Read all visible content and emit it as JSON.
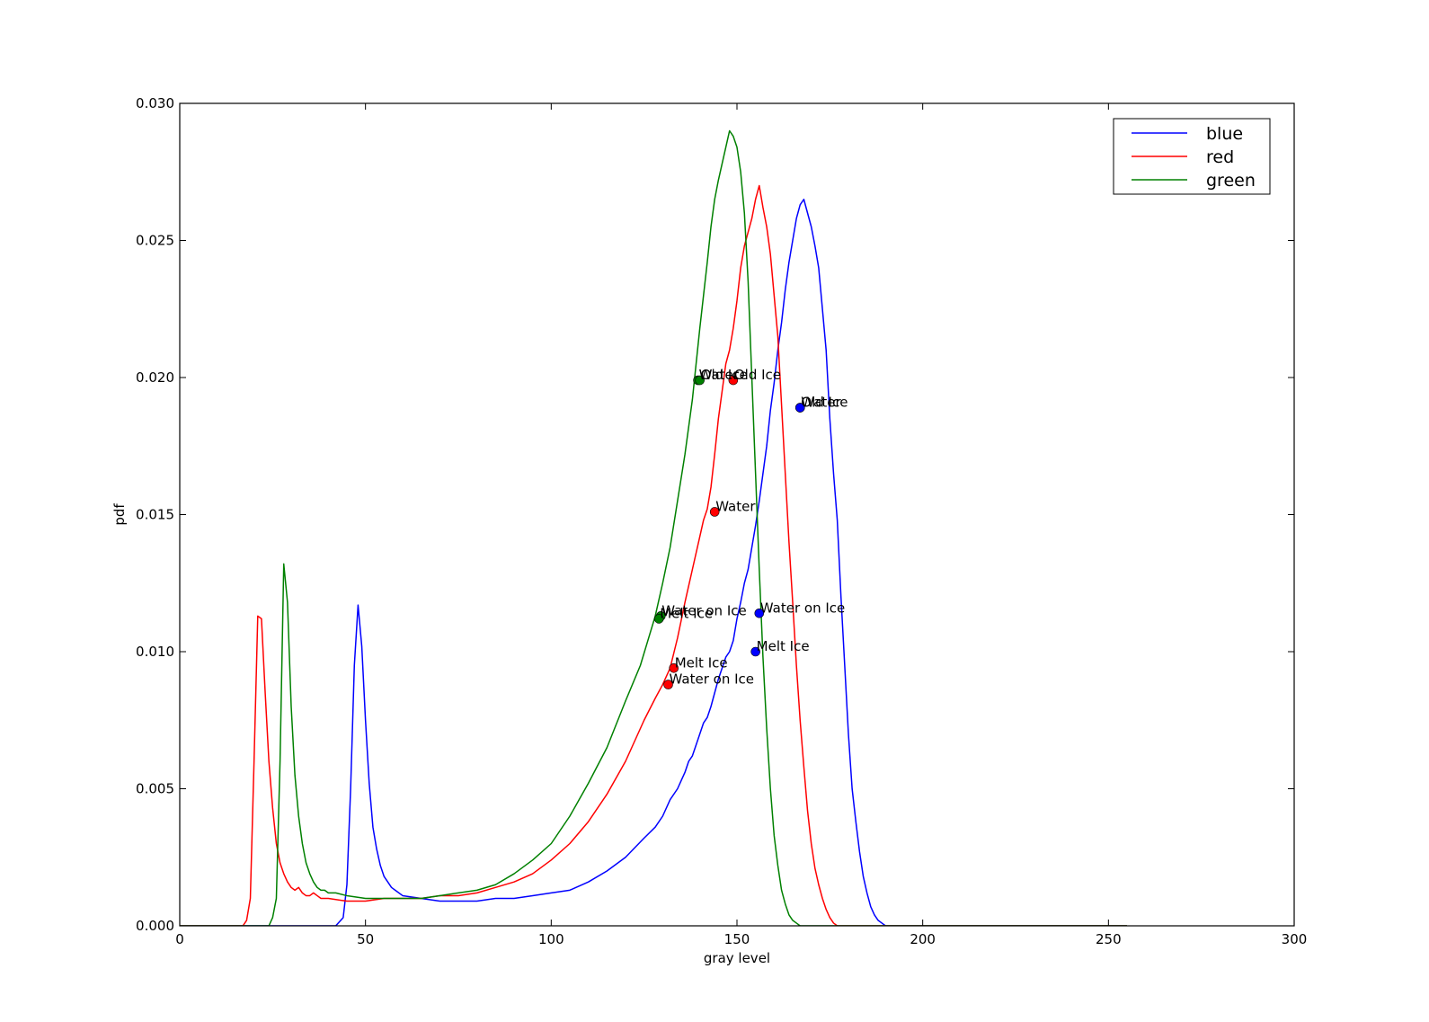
{
  "chart_data": {
    "type": "line",
    "title": "",
    "xlabel": "gray level",
    "ylabel": "pdf",
    "xlim": [
      0,
      300
    ],
    "ylim": [
      0,
      0.03
    ],
    "xticks": [
      0,
      50,
      100,
      150,
      200,
      250,
      300
    ],
    "xtick_labels": [
      "0",
      "50",
      "100",
      "150",
      "200",
      "250",
      "300"
    ],
    "yticks": [
      0,
      0.005,
      0.01,
      0.015,
      0.02,
      0.025,
      0.03
    ],
    "ytick_labels": [
      "0.000",
      "0.005",
      "0.010",
      "0.015",
      "0.020",
      "0.025",
      "0.030"
    ],
    "grid": false,
    "legend_position": "top-right",
    "series": [
      {
        "name": "blue",
        "color": "#0000ff",
        "x": [
          0,
          42,
          44,
          45,
          46,
          47,
          48,
          49,
          50,
          51,
          52,
          53,
          54,
          55,
          56,
          57,
          58,
          60,
          65,
          70,
          75,
          80,
          85,
          90,
          95,
          100,
          105,
          110,
          115,
          120,
          125,
          128,
          130,
          132,
          134,
          135,
          136,
          137,
          138,
          139,
          140,
          141,
          142,
          143,
          144,
          145,
          146,
          147,
          148,
          149,
          150,
          151,
          152,
          153,
          154,
          155,
          156,
          157,
          158,
          159,
          160,
          161,
          162,
          163,
          164,
          165,
          166,
          167,
          168,
          169,
          170,
          171,
          172,
          173,
          174,
          175,
          176,
          177,
          178,
          179,
          180,
          181,
          182,
          183,
          184,
          185,
          186,
          187,
          188,
          189,
          190,
          191,
          192,
          193,
          194,
          195,
          196,
          197,
          198,
          199,
          200,
          202,
          255
        ],
        "y": [
          0,
          0,
          0.0003,
          0.0015,
          0.005,
          0.0095,
          0.0117,
          0.0102,
          0.0075,
          0.0052,
          0.0036,
          0.0028,
          0.0022,
          0.0018,
          0.0016,
          0.0014,
          0.0013,
          0.0011,
          0.001,
          0.0009,
          0.0009,
          0.0009,
          0.001,
          0.001,
          0.0011,
          0.0012,
          0.0013,
          0.0016,
          0.002,
          0.0025,
          0.0032,
          0.0036,
          0.004,
          0.0046,
          0.005,
          0.0053,
          0.0056,
          0.006,
          0.0062,
          0.0066,
          0.007,
          0.0074,
          0.0076,
          0.008,
          0.0085,
          0.009,
          0.0094,
          0.0098,
          0.01,
          0.0104,
          0.0112,
          0.0118,
          0.0125,
          0.013,
          0.0138,
          0.0146,
          0.0155,
          0.0165,
          0.0175,
          0.0188,
          0.0198,
          0.021,
          0.022,
          0.0232,
          0.0242,
          0.025,
          0.0258,
          0.0263,
          0.0265,
          0.026,
          0.0255,
          0.0248,
          0.024,
          0.0225,
          0.021,
          0.0185,
          0.0165,
          0.0148,
          0.012,
          0.0095,
          0.007,
          0.005,
          0.0038,
          0.0027,
          0.0018,
          0.0012,
          0.0007,
          0.0004,
          0.0002,
          0.0001,
          0,
          0,
          0,
          0,
          0,
          0,
          0,
          0,
          0,
          0,
          0,
          0,
          0
        ]
      },
      {
        "name": "red",
        "color": "#ff0000",
        "x": [
          0,
          17,
          18,
          19,
          20,
          21,
          22,
          23,
          24,
          25,
          26,
          27,
          28,
          29,
          30,
          31,
          32,
          33,
          34,
          35,
          36,
          37,
          38,
          40,
          45,
          50,
          55,
          60,
          65,
          70,
          75,
          80,
          85,
          90,
          95,
          100,
          105,
          110,
          115,
          120,
          125,
          128,
          130,
          132,
          134,
          136,
          138,
          140,
          141,
          142,
          143,
          144,
          145,
          146,
          147,
          148,
          149,
          150,
          151,
          152,
          153,
          154,
          155,
          156,
          157,
          158,
          159,
          160,
          161,
          162,
          163,
          164,
          165,
          166,
          167,
          168,
          169,
          170,
          171,
          172,
          173,
          174,
          175,
          176,
          177,
          178,
          179,
          180,
          182,
          255
        ],
        "y": [
          0,
          0,
          0.0002,
          0.001,
          0.006,
          0.0113,
          0.0112,
          0.0085,
          0.006,
          0.0043,
          0.003,
          0.0023,
          0.0019,
          0.0016,
          0.0014,
          0.0013,
          0.0014,
          0.0012,
          0.0011,
          0.0011,
          0.0012,
          0.0011,
          0.001,
          0.001,
          0.0009,
          0.0009,
          0.001,
          0.001,
          0.001,
          0.0011,
          0.0011,
          0.0012,
          0.0014,
          0.0016,
          0.0019,
          0.0024,
          0.003,
          0.0038,
          0.0048,
          0.006,
          0.0075,
          0.0083,
          0.0088,
          0.0094,
          0.0105,
          0.0118,
          0.013,
          0.0142,
          0.0148,
          0.0152,
          0.016,
          0.0172,
          0.0185,
          0.0195,
          0.0205,
          0.021,
          0.0218,
          0.0228,
          0.024,
          0.0248,
          0.0253,
          0.0258,
          0.0265,
          0.027,
          0.0262,
          0.0255,
          0.0245,
          0.023,
          0.0215,
          0.019,
          0.0165,
          0.014,
          0.0118,
          0.0095,
          0.0075,
          0.0058,
          0.0042,
          0.003,
          0.0021,
          0.0015,
          0.001,
          0.0006,
          0.0003,
          0.0001,
          0,
          0,
          0,
          0,
          0,
          0
        ]
      },
      {
        "name": "green",
        "color": "#008000",
        "x": [
          0,
          24,
          25,
          26,
          27,
          28,
          29,
          30,
          31,
          32,
          33,
          34,
          35,
          36,
          37,
          38,
          39,
          40,
          42,
          45,
          50,
          55,
          60,
          65,
          70,
          75,
          80,
          85,
          90,
          95,
          100,
          105,
          110,
          115,
          120,
          124,
          126,
          128,
          130,
          132,
          134,
          136,
          138,
          139,
          140,
          141,
          142,
          143,
          144,
          145,
          146,
          147,
          148,
          149,
          150,
          151,
          152,
          153,
          154,
          155,
          156,
          157,
          158,
          159,
          160,
          161,
          162,
          163,
          164,
          165,
          166,
          167,
          168,
          169,
          170,
          255
        ],
        "y": [
          0,
          0,
          0.0003,
          0.001,
          0.006,
          0.0132,
          0.0118,
          0.008,
          0.0055,
          0.004,
          0.003,
          0.0023,
          0.0019,
          0.0016,
          0.0014,
          0.0013,
          0.0013,
          0.0012,
          0.0012,
          0.0011,
          0.001,
          0.001,
          0.001,
          0.001,
          0.0011,
          0.0012,
          0.0013,
          0.0015,
          0.0019,
          0.0024,
          0.003,
          0.004,
          0.0052,
          0.0065,
          0.0082,
          0.0095,
          0.0104,
          0.0113,
          0.0125,
          0.0138,
          0.0155,
          0.0172,
          0.0192,
          0.0205,
          0.0218,
          0.023,
          0.0242,
          0.0255,
          0.0265,
          0.0272,
          0.0278,
          0.0284,
          0.029,
          0.0288,
          0.0284,
          0.0275,
          0.026,
          0.0235,
          0.02,
          0.0165,
          0.013,
          0.0098,
          0.0072,
          0.005,
          0.0033,
          0.0022,
          0.0013,
          0.0008,
          0.0004,
          0.0002,
          0.0001,
          0,
          0,
          0,
          0,
          0
        ]
      }
    ],
    "annotations": [
      {
        "text": "Water",
        "x": 167,
        "y": 0.0189,
        "color": "#0000ff"
      },
      {
        "text": "Old Ice",
        "x": 167,
        "y": 0.0189,
        "color": "#0000ff"
      },
      {
        "text": "Water on Ice",
        "x": 156,
        "y": 0.0114,
        "color": "#0000ff"
      },
      {
        "text": "Melt Ice",
        "x": 155,
        "y": 0.01,
        "color": "#0000ff"
      },
      {
        "text": "Old Ice",
        "x": 149,
        "y": 0.0199,
        "color": "#ff0000"
      },
      {
        "text": "Water",
        "x": 144,
        "y": 0.0151,
        "color": "#ff0000"
      },
      {
        "text": "Melt Ice",
        "x": 133,
        "y": 0.0094,
        "color": "#ff0000"
      },
      {
        "text": "Water on Ice",
        "x": 131.5,
        "y": 0.0088,
        "color": "#ff0000"
      },
      {
        "text": "Water",
        "x": 139.5,
        "y": 0.0199,
        "color": "#008000"
      },
      {
        "text": "Old Ice",
        "x": 140,
        "y": 0.0199,
        "color": "#008000"
      },
      {
        "text": "Water on Ice",
        "x": 129.5,
        "y": 0.0113,
        "color": "#008000"
      },
      {
        "text": "Melt Ice",
        "x": 129,
        "y": 0.0112,
        "color": "#008000"
      }
    ]
  }
}
